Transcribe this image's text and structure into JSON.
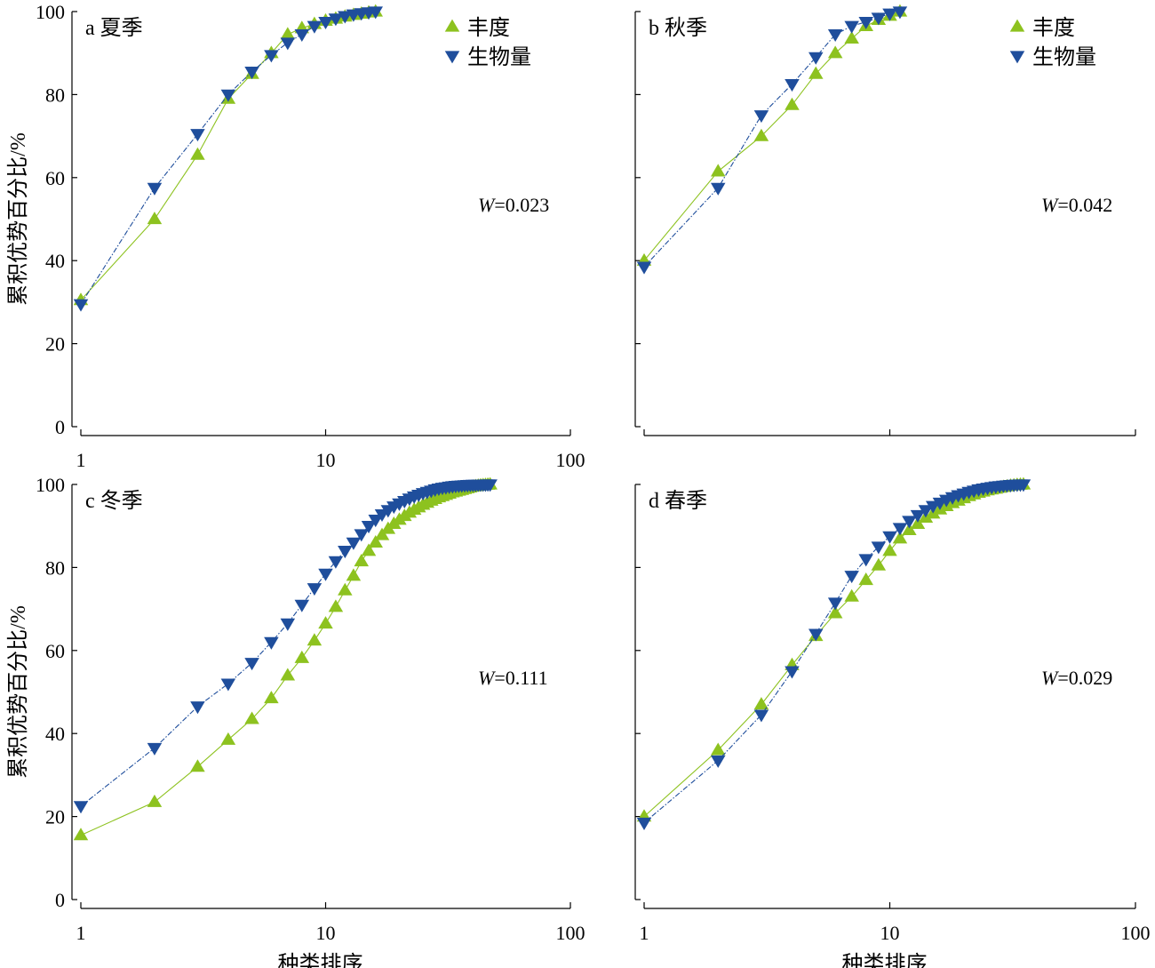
{
  "colors": {
    "abundance": "#8dc21f",
    "biomass": "#1f4e9c"
  },
  "chart_data": [
    {
      "type": "line",
      "panel_label": "a 夏季",
      "xlabel": "",
      "ylabel": "累积优势百分比/%",
      "xscale": "log",
      "xlim": [
        1,
        100
      ],
      "ylim": [
        0,
        100
      ],
      "xticks": [
        "1",
        "10",
        "100"
      ],
      "yticks": [
        "0",
        "20",
        "40",
        "60",
        "80",
        "100"
      ],
      "legend": {
        "entries": [
          "丰度",
          "生物量"
        ],
        "placement": "top-right"
      },
      "annotation": {
        "italic": "W",
        "text": "=0.023"
      },
      "series": [
        {
          "name": "丰度",
          "marker": "triangle-up",
          "x": [
            1,
            2,
            3,
            4,
            5,
            6,
            7,
            8,
            9,
            10,
            11,
            12,
            13,
            14,
            15,
            16
          ],
          "y": [
            30.5,
            50,
            65.5,
            79,
            85,
            90,
            94.5,
            96,
            97,
            97.8,
            98.3,
            98.8,
            99.2,
            99.5,
            99.8,
            100
          ]
        },
        {
          "name": "生物量",
          "marker": "triangle-down",
          "x": [
            1,
            2,
            3,
            4,
            5,
            6,
            7,
            8,
            9,
            10,
            11,
            12,
            13,
            14,
            15,
            16
          ],
          "y": [
            29.5,
            57.5,
            70.5,
            80,
            85.5,
            89.5,
            92.5,
            94.5,
            96.5,
            97.5,
            98.3,
            98.9,
            99.3,
            99.6,
            99.8,
            100
          ]
        }
      ]
    },
    {
      "type": "line",
      "panel_label": "b 秋季",
      "xlabel": "",
      "ylabel": "",
      "xscale": "log",
      "xlim": [
        1,
        100
      ],
      "ylim": [
        0,
        100
      ],
      "xticks": [],
      "yticks": [],
      "legend": {
        "entries": [
          "丰度",
          "生物量"
        ],
        "placement": "top-right"
      },
      "annotation": {
        "italic": "W",
        "text": "=0.042"
      },
      "series": [
        {
          "name": "丰度",
          "marker": "triangle-up",
          "x": [
            1,
            2,
            3,
            4,
            5,
            6,
            7,
            8,
            9,
            10,
            11
          ],
          "y": [
            40,
            61.5,
            70,
            77.5,
            85,
            90,
            93.5,
            96.5,
            98,
            99,
            100
          ]
        },
        {
          "name": "生物量",
          "marker": "triangle-down",
          "x": [
            1,
            2,
            3,
            4,
            5,
            6,
            7,
            8,
            9,
            10,
            11
          ],
          "y": [
            38.5,
            57.5,
            75,
            82.5,
            89,
            94.5,
            96.5,
            97.5,
            98.5,
            99.5,
            100
          ]
        }
      ]
    },
    {
      "type": "line",
      "panel_label": "c 冬季",
      "xlabel": "种类排序",
      "ylabel": "累积优势百分比/%",
      "xscale": "log",
      "xlim": [
        1,
        100
      ],
      "ylim": [
        0,
        100
      ],
      "xticks": [
        "1",
        "10",
        "100"
      ],
      "yticks": [
        "0",
        "20",
        "40",
        "60",
        "80",
        "100"
      ],
      "legend": null,
      "annotation": {
        "italic": "W",
        "text": "=0.111"
      },
      "series": [
        {
          "name": "丰度",
          "marker": "triangle-up",
          "x": [
            1,
            2,
            3,
            4,
            5,
            6,
            7,
            8,
            9,
            10,
            11,
            12,
            13,
            14,
            15,
            16,
            17,
            18,
            19,
            20,
            21,
            22,
            23,
            24,
            25,
            26,
            27,
            28,
            29,
            30,
            31,
            32,
            33,
            34,
            35,
            36,
            37,
            38,
            39,
            40,
            41,
            42,
            43,
            44,
            45,
            46,
            47
          ],
          "y": [
            15.5,
            23.5,
            32,
            38.5,
            43.5,
            48.5,
            54,
            58.2,
            62.4,
            66.5,
            70.5,
            74.5,
            78,
            81.5,
            84,
            86,
            87.8,
            89.3,
            90.5,
            91.5,
            92.4,
            93.2,
            93.9,
            94.5,
            95.1,
            95.6,
            96.1,
            96.5,
            96.9,
            97.2,
            97.5,
            97.8,
            98.1,
            98.3,
            98.5,
            98.7,
            98.9,
            99.1,
            99.3,
            99.5,
            99.6,
            99.7,
            99.8,
            99.85,
            99.9,
            99.95,
            100
          ]
        },
        {
          "name": "生物量",
          "marker": "triangle-down",
          "x": [
            1,
            2,
            3,
            4,
            5,
            6,
            7,
            8,
            9,
            10,
            11,
            12,
            13,
            14,
            15,
            16,
            17,
            18,
            19,
            20,
            21,
            22,
            23,
            24,
            25,
            26,
            27,
            28,
            29,
            30,
            31,
            32,
            33,
            34,
            35,
            36,
            37,
            38,
            39,
            40,
            41,
            42,
            43,
            44,
            45,
            46,
            47
          ],
          "y": [
            22.5,
            36.5,
            46.5,
            52,
            57,
            62,
            66.5,
            71,
            75,
            78.5,
            81.5,
            84,
            86,
            88,
            90,
            91.5,
            92.8,
            93.8,
            94.7,
            95.4,
            96,
            96.6,
            97.1,
            97.5,
            97.9,
            98.2,
            98.5,
            98.8,
            99,
            99.2,
            99.3,
            99.45,
            99.55,
            99.65,
            99.7,
            99.75,
            99.8,
            99.85,
            99.88,
            99.9,
            99.92,
            99.94,
            99.96,
            99.97,
            99.98,
            99.99,
            100
          ]
        }
      ]
    },
    {
      "type": "line",
      "panel_label": "d 春季",
      "xlabel": "种类排序",
      "ylabel": "",
      "xscale": "log",
      "xlim": [
        1,
        100
      ],
      "ylim": [
        0,
        100
      ],
      "xticks": [
        "1",
        "10",
        "100"
      ],
      "yticks": [],
      "legend": null,
      "annotation": {
        "italic": "W",
        "text": "=0.029"
      },
      "series": [
        {
          "name": "丰度",
          "marker": "triangle-up",
          "x": [
            1,
            2,
            3,
            4,
            5,
            6,
            7,
            8,
            9,
            10,
            11,
            12,
            13,
            14,
            15,
            16,
            17,
            18,
            19,
            20,
            21,
            22,
            23,
            24,
            25,
            26,
            27,
            28,
            29,
            30,
            31,
            32,
            33,
            34,
            35
          ],
          "y": [
            20,
            36,
            47,
            56.5,
            63.5,
            69,
            73,
            77,
            80.5,
            84,
            87,
            89,
            90.5,
            92,
            93,
            94,
            94.8,
            95.5,
            96.1,
            96.7,
            97.2,
            97.6,
            98,
            98.3,
            98.6,
            98.8,
            99,
            99.2,
            99.4,
            99.55,
            99.7,
            99.8,
            99.9,
            99.95,
            100
          ]
        },
        {
          "name": "生物量",
          "marker": "triangle-down",
          "x": [
            1,
            2,
            3,
            4,
            5,
            6,
            7,
            8,
            9,
            10,
            11,
            12,
            13,
            14,
            15,
            16,
            17,
            18,
            19,
            20,
            21,
            22,
            23,
            24,
            25,
            26,
            27,
            28,
            29,
            30,
            31,
            32,
            33,
            34,
            35
          ],
          "y": [
            18.5,
            33.5,
            44.5,
            55,
            64,
            71.5,
            78,
            82,
            85,
            87.5,
            89.5,
            91.2,
            92.6,
            93.8,
            94.8,
            95.6,
            96.3,
            96.9,
            97.4,
            97.8,
            98.2,
            98.5,
            98.8,
            99,
            99.2,
            99.35,
            99.5,
            99.6,
            99.7,
            99.78,
            99.85,
            99.9,
            99.95,
            99.98,
            100
          ]
        }
      ]
    }
  ]
}
